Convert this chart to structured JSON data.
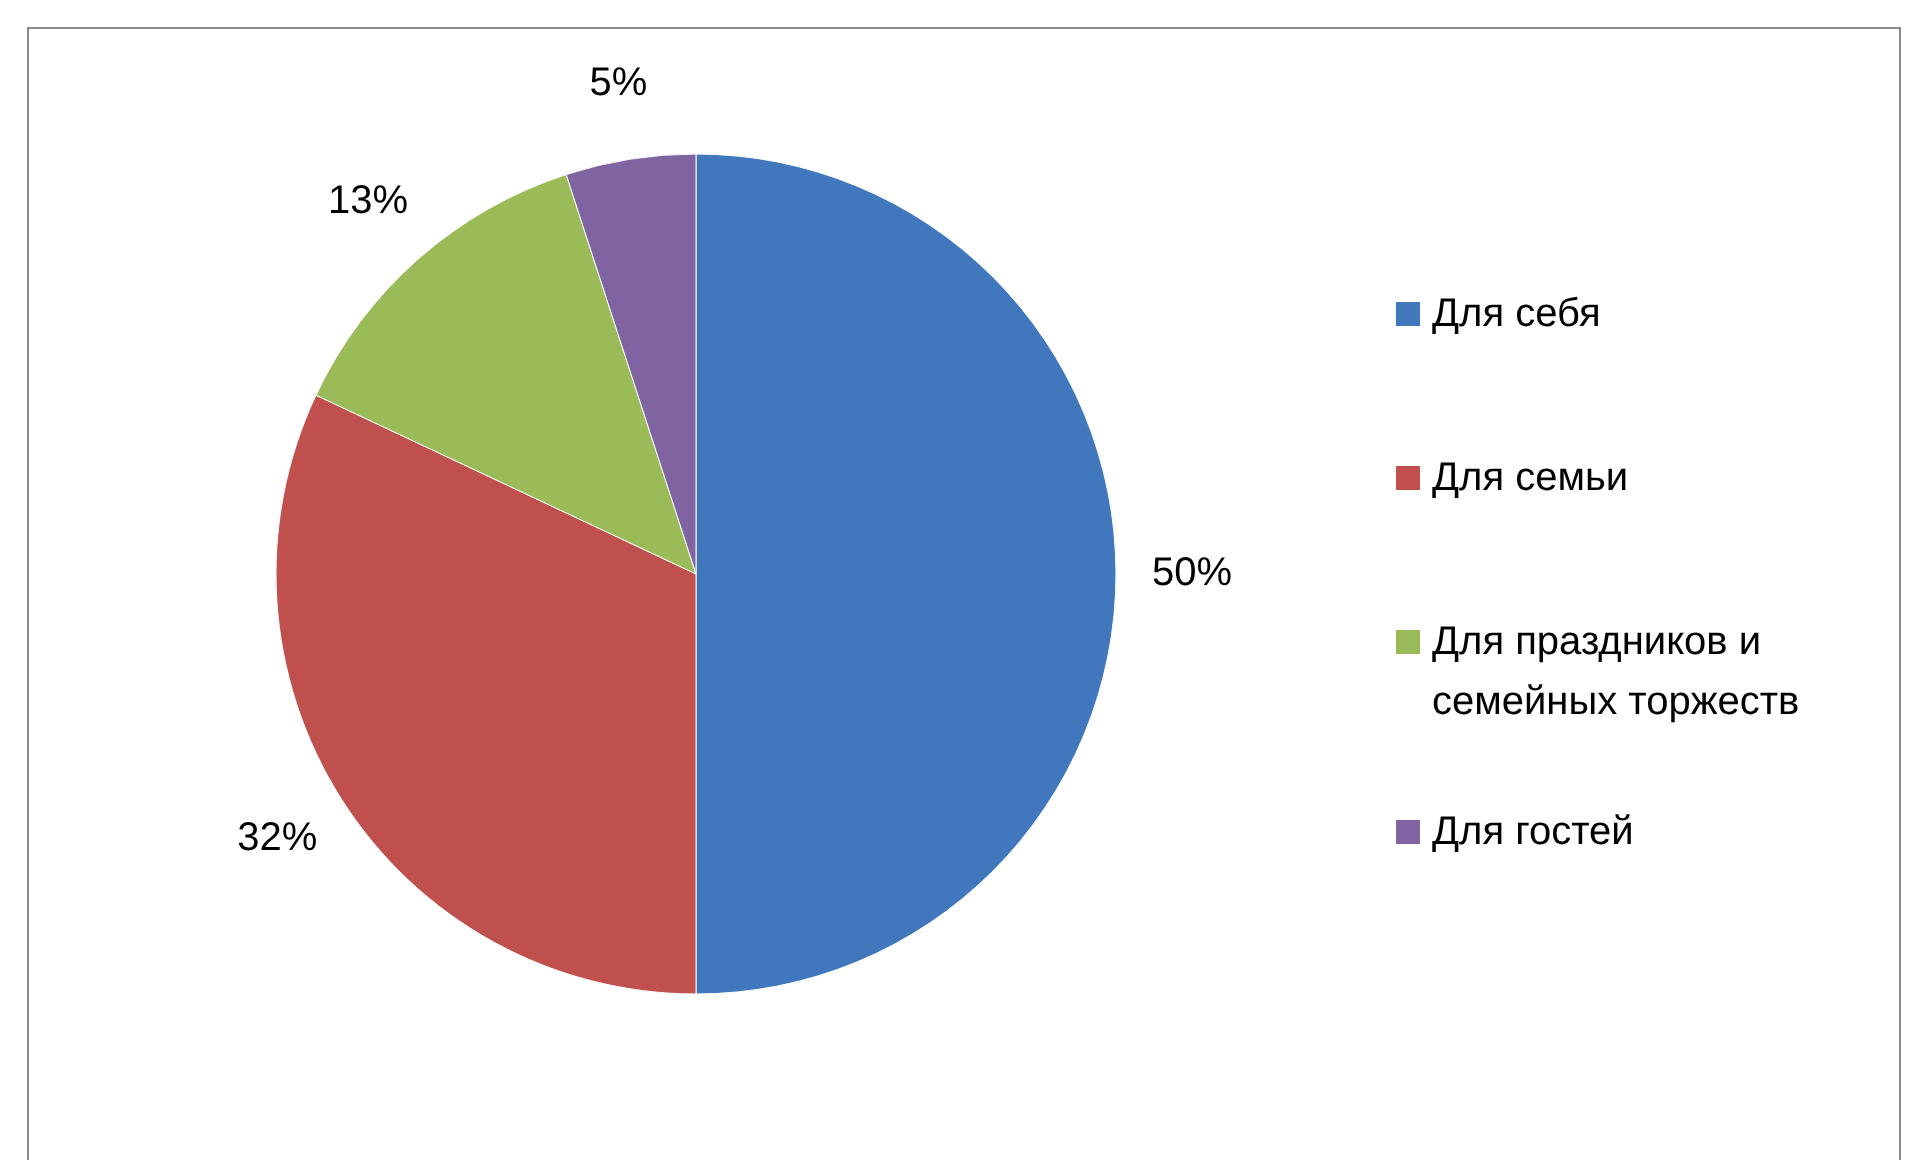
{
  "chart_data": {
    "type": "pie",
    "categories": [
      "Для себя",
      "Для семьи",
      "Для праздников и семейных торжеств",
      "Для гостей"
    ],
    "values": [
      50,
      32,
      13,
      5
    ],
    "colors": [
      "#4177bd",
      "#c0504d",
      "#9bbb59",
      "#8064a2"
    ],
    "value_labels": [
      "50%",
      "32%",
      "13%",
      "5%"
    ],
    "legend": "right"
  }
}
